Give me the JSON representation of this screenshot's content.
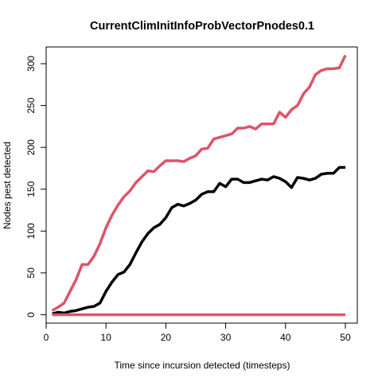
{
  "chart_data": {
    "type": "line",
    "title": "CurrentClimInitInfoProbVectorPnodes0.1",
    "xlabel": "Time since incursion detected (timesteps)",
    "ylabel": "Nodes pest detected",
    "xlim": [
      0,
      52
    ],
    "ylim": [
      -10,
      320
    ],
    "xticks": [
      0,
      10,
      20,
      30,
      40,
      50
    ],
    "yticks": [
      0,
      50,
      100,
      150,
      200,
      250,
      300
    ],
    "grid": false,
    "x": [
      1,
      2,
      3,
      4,
      5,
      6,
      7,
      8,
      9,
      10,
      11,
      12,
      13,
      14,
      15,
      16,
      17,
      18,
      19,
      20,
      21,
      22,
      23,
      24,
      25,
      26,
      27,
      28,
      29,
      30,
      31,
      32,
      33,
      34,
      35,
      36,
      37,
      38,
      39,
      40,
      41,
      42,
      43,
      44,
      45,
      46,
      47,
      48,
      49,
      50
    ],
    "series": [
      {
        "color": "#DF536B",
        "values": [
          5,
          9,
          14,
          28,
          42,
          60,
          60,
          70,
          85,
          104,
          119,
          131,
          141,
          148,
          158,
          165,
          172,
          171,
          178,
          184,
          184,
          184,
          183,
          187,
          190,
          198,
          199,
          210,
          212,
          214,
          216,
          223,
          223,
          225,
          222,
          228,
          228,
          228,
          242,
          236,
          245,
          250,
          264,
          272,
          287,
          292,
          294,
          294,
          295,
          310
        ]
      },
      {
        "color": "#000000",
        "values": [
          1,
          3,
          2,
          4,
          5,
          7,
          9,
          10,
          14,
          28,
          39,
          48,
          51,
          60,
          74,
          87,
          97,
          104,
          108,
          116,
          128,
          132,
          130,
          133,
          137,
          144,
          147,
          147,
          157,
          153,
          162,
          162,
          158,
          158,
          160,
          162,
          161,
          165,
          163,
          159,
          152,
          164,
          163,
          161,
          163,
          168,
          169,
          169,
          176,
          176
        ]
      },
      {
        "color": "#DF536B",
        "values": [
          0,
          0,
          0,
          0,
          0,
          0,
          0,
          0,
          0,
          0,
          0,
          0,
          0,
          0,
          0,
          0,
          0,
          0,
          0,
          0,
          0,
          0,
          0,
          0,
          0,
          0,
          0,
          0,
          0,
          0,
          0,
          0,
          0,
          0,
          0,
          0,
          0,
          0,
          0,
          0,
          0,
          0,
          0,
          0,
          0,
          0,
          0,
          0,
          0,
          0
        ]
      }
    ]
  }
}
